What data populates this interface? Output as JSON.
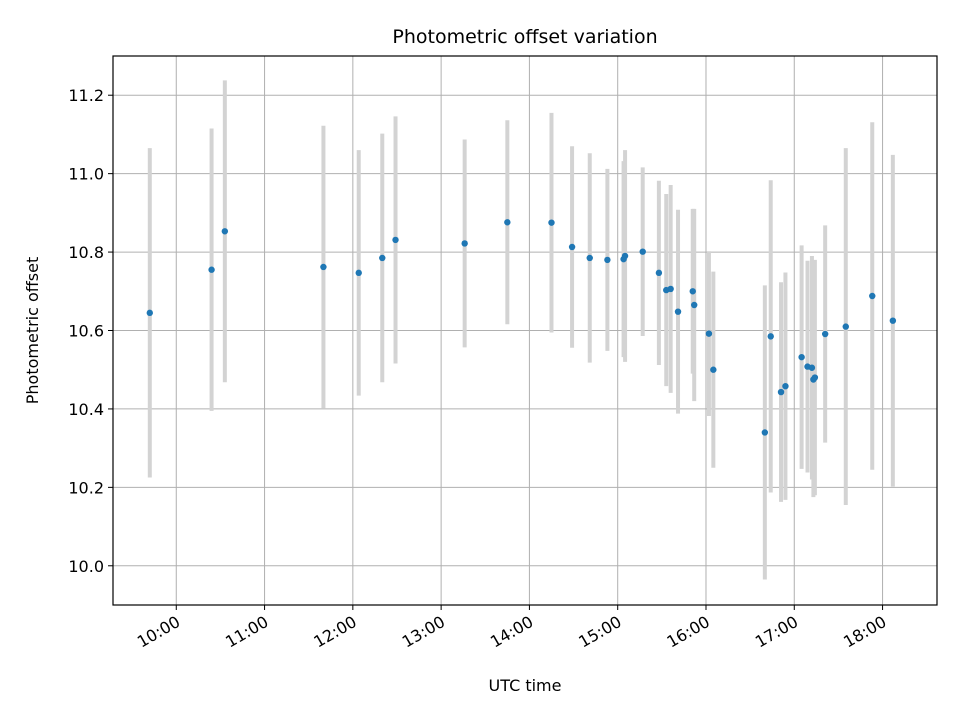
{
  "chart_data": {
    "type": "scatter",
    "title": "Photometric offset variation",
    "xlabel": "UTC time",
    "ylabel": "Photometric offset",
    "x_ticks": [
      "10:00",
      "11:00",
      "12:00",
      "13:00",
      "14:00",
      "15:00",
      "16:00",
      "17:00",
      "18:00"
    ],
    "x_range": [
      "09:17",
      "18:37"
    ],
    "y_ticks": [
      "10.0",
      "10.2",
      "10.4",
      "10.6",
      "10.8",
      "11.0",
      "11.2"
    ],
    "ylim": [
      9.9,
      11.3
    ],
    "grid": true,
    "point_color": "#1f77b4",
    "errorbar_color": "#d3d3d3",
    "points": [
      {
        "x": "09:42",
        "y": 10.645,
        "err": 0.42
      },
      {
        "x": "10:24",
        "y": 10.755,
        "err": 0.36
      },
      {
        "x": "10:33",
        "y": 10.853,
        "err": 0.385
      },
      {
        "x": "11:40",
        "y": 10.762,
        "err": 0.36
      },
      {
        "x": "12:04",
        "y": 10.747,
        "err": 0.313
      },
      {
        "x": "12:20",
        "y": 10.785,
        "err": 0.317
      },
      {
        "x": "12:29",
        "y": 10.831,
        "err": 0.315
      },
      {
        "x": "13:16",
        "y": 10.822,
        "err": 0.265
      },
      {
        "x": "13:45",
        "y": 10.876,
        "err": 0.26
      },
      {
        "x": "14:15",
        "y": 10.875,
        "err": 0.28
      },
      {
        "x": "14:29",
        "y": 10.813,
        "err": 0.257
      },
      {
        "x": "14:41",
        "y": 10.785,
        "err": 0.267
      },
      {
        "x": "14:53",
        "y": 10.78,
        "err": 0.232
      },
      {
        "x": "15:04",
        "y": 10.782,
        "err": 0.25
      },
      {
        "x": "15:05",
        "y": 10.79,
        "err": 0.27
      },
      {
        "x": "15:17",
        "y": 10.801,
        "err": 0.215
      },
      {
        "x": "15:28",
        "y": 10.747,
        "err": 0.235
      },
      {
        "x": "15:33",
        "y": 10.703,
        "err": 0.245
      },
      {
        "x": "15:36",
        "y": 10.706,
        "err": 0.265
      },
      {
        "x": "15:41",
        "y": 10.648,
        "err": 0.26
      },
      {
        "x": "15:51",
        "y": 10.7,
        "err": 0.21
      },
      {
        "x": "15:52",
        "y": 10.665,
        "err": 0.245
      },
      {
        "x": "16:02",
        "y": 10.592,
        "err": 0.21
      },
      {
        "x": "16:05",
        "y": 10.5,
        "err": 0.25
      },
      {
        "x": "16:40",
        "y": 10.34,
        "err": 0.375
      },
      {
        "x": "16:44",
        "y": 10.585,
        "err": 0.398
      },
      {
        "x": "16:51",
        "y": 10.443,
        "err": 0.28
      },
      {
        "x": "16:54",
        "y": 10.458,
        "err": 0.29
      },
      {
        "x": "17:05",
        "y": 10.532,
        "err": 0.285
      },
      {
        "x": "17:09",
        "y": 10.508,
        "err": 0.27
      },
      {
        "x": "17:12",
        "y": 10.505,
        "err": 0.285
      },
      {
        "x": "17:13",
        "y": 10.475,
        "err": 0.3
      },
      {
        "x": "17:14",
        "y": 10.48,
        "err": 0.3
      },
      {
        "x": "17:21",
        "y": 10.591,
        "err": 0.277
      },
      {
        "x": "17:35",
        "y": 10.61,
        "err": 0.455
      },
      {
        "x": "17:53",
        "y": 10.688,
        "err": 0.443
      },
      {
        "x": "18:07",
        "y": 10.625,
        "err": 0.423
      }
    ]
  }
}
